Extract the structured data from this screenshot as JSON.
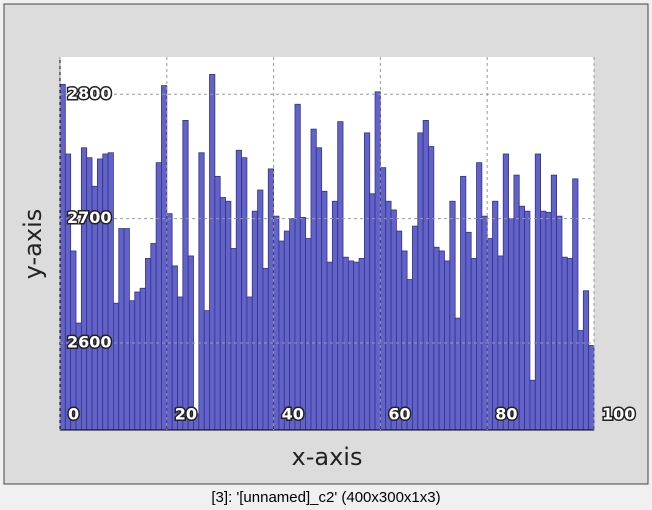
{
  "window_title": "[3]: '[unnamed]_c2' (400x300x1x3)",
  "chart_data": {
    "type": "bar",
    "xlabel": "x-axis",
    "ylabel": "y-axis",
    "x": [
      0,
      1,
      2,
      3,
      4,
      5,
      6,
      7,
      8,
      9,
      10,
      11,
      12,
      13,
      14,
      15,
      16,
      17,
      18,
      19,
      20,
      21,
      22,
      23,
      24,
      25,
      26,
      27,
      28,
      29,
      30,
      31,
      32,
      33,
      34,
      35,
      36,
      37,
      38,
      39,
      40,
      41,
      42,
      43,
      44,
      45,
      46,
      47,
      48,
      49,
      50,
      51,
      52,
      53,
      54,
      55,
      56,
      57,
      58,
      59,
      60,
      61,
      62,
      63,
      64,
      65,
      66,
      67,
      68,
      69,
      70,
      71,
      72,
      73,
      74,
      75,
      76,
      77,
      78,
      79,
      80,
      81,
      82,
      83,
      84,
      85,
      86,
      87,
      88,
      89,
      90,
      91,
      92,
      93,
      94,
      95,
      96,
      97,
      98,
      99
    ],
    "values": [
      2808,
      2752,
      2674,
      2616,
      2757,
      2749,
      2726,
      2748,
      2752,
      2753,
      2632,
      2692,
      2692,
      2634,
      2641,
      2644,
      2668,
      2680,
      2745,
      2807,
      2704,
      2662,
      2637,
      2779,
      2670,
      2543,
      2753,
      2626,
      2816,
      2734,
      2717,
      2714,
      2676,
      2755,
      2749,
      2637,
      2706,
      2723,
      2660,
      2740,
      2702,
      2682,
      2690,
      2700,
      2792,
      2701,
      2684,
      2772,
      2757,
      2722,
      2665,
      2714,
      2778,
      2669,
      2666,
      2665,
      2668,
      2769,
      2720,
      2802,
      2741,
      2714,
      2707,
      2690,
      2674,
      2651,
      2694,
      2769,
      2779,
      2758,
      2677,
      2674,
      2666,
      2714,
      2620,
      2734,
      2689,
      2668,
      2745,
      2702,
      2684,
      2714,
      2670,
      2752,
      2700,
      2735,
      2710,
      2706,
      2570,
      2752,
      2706,
      2705,
      2735,
      2702,
      2669,
      2668,
      2732,
      2610,
      2642,
      2598
    ],
    "color": "#6262c8",
    "xlim": [
      0,
      100
    ],
    "ylim": [
      2530,
      2830
    ],
    "xticks": [
      0,
      20,
      40,
      60,
      80,
      100
    ],
    "yticks": [
      2600,
      2700,
      2800
    ],
    "grid": true
  }
}
